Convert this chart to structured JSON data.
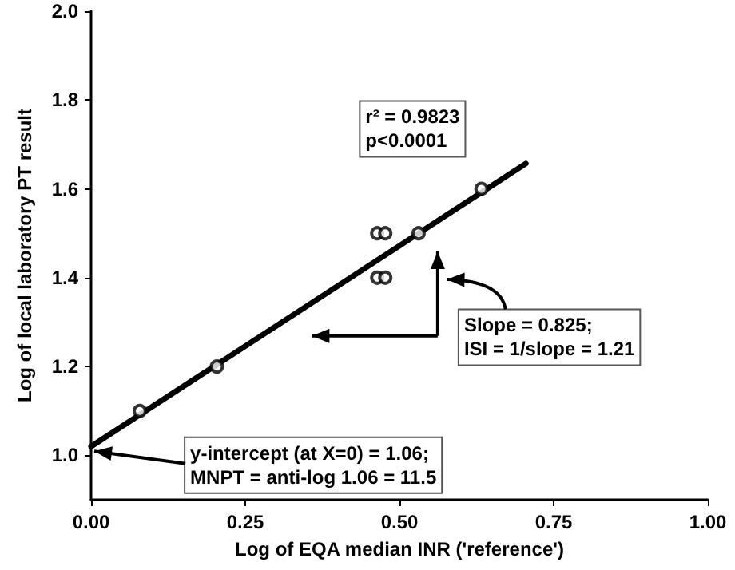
{
  "chart_data": {
    "type": "scatter",
    "xlabel": "Log of EQA median INR ('reference')",
    "ylabel": "Log of local laboratory PT result",
    "xlim": [
      0,
      1
    ],
    "xticks": [
      {
        "value": 0,
        "label": "0.00"
      },
      {
        "value": 0.25,
        "label": "0.25"
      },
      {
        "value": 0.5,
        "label": "0.50"
      },
      {
        "value": 0.75,
        "label": "0.75"
      },
      {
        "value": 1,
        "label": "1.00"
      }
    ],
    "ylim": [
      0.9,
      2.0
    ],
    "yticks": [
      {
        "value": 1,
        "label": "1.0"
      },
      1.2,
      1.4,
      1.6,
      1.8,
      {
        "value": 2,
        "label": "2.0"
      }
    ],
    "grid": false,
    "series": [
      {
        "marker": "circle",
        "color": "#000000",
        "x": [
          0.079,
          0.204,
          0.464,
          0.477,
          0.464,
          0.477,
          0.531,
          0.633
        ],
        "values": [
          1.1,
          1.2,
          1.5,
          1.5,
          1.4,
          1.4,
          1.5,
          1.6
        ]
      },
      {
        "type": "line",
        "marker": "none",
        "line_style": "solid",
        "color": "#000000",
        "x": [
          0,
          0.705
        ],
        "values": [
          1.02,
          1.657
        ]
      }
    ],
    "annotations": [
      "r² = 0.9823\np<0.0001",
      "Slope = 0.825;\nISI = 1/slope = 1.21",
      {
        "text": "y-intercept (at X=0) = 1.06;\nMNPT = anti-log 1.06 = 11.5",
        "x": 0,
        "y": 1.02
      }
    ]
  }
}
